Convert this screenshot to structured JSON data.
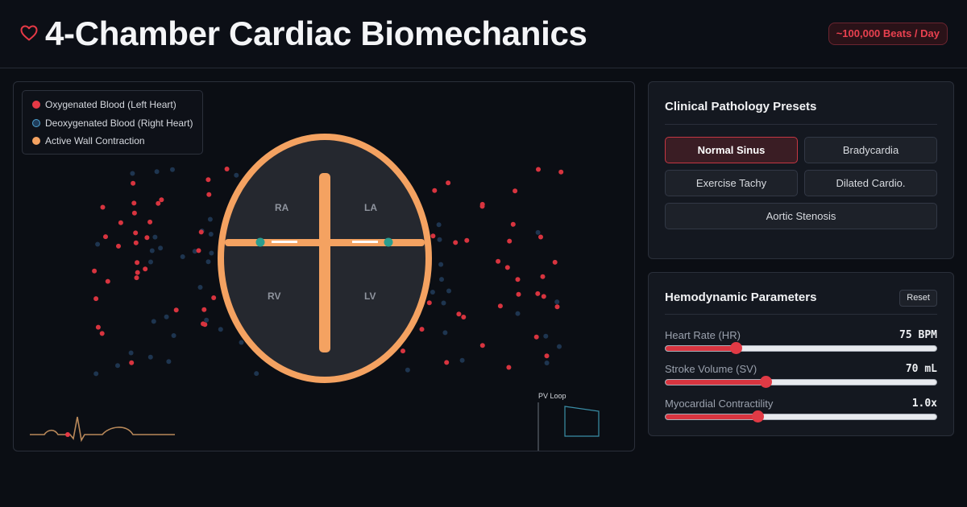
{
  "header": {
    "title": "4-Chamber Cardiac Biomechanics",
    "logo_icon": "heart-icon",
    "badge": "~100,000 Beats / Day",
    "accent": "#e63946"
  },
  "legend": {
    "items": [
      {
        "label": "Oxygenated Blood (Left Heart)",
        "color": "#e63946"
      },
      {
        "label": "Deoxygenated Blood (Right Heart)",
        "color": "#1f3c5a"
      },
      {
        "label": "Active Wall Contraction",
        "color": "#f4a261"
      }
    ]
  },
  "heart": {
    "chambers": {
      "ra": "RA",
      "la": "LA",
      "rv": "RV",
      "lv": "LV"
    },
    "wall_color": "#f4a261",
    "valve_color": "#2a9d8f"
  },
  "pv_loop": {
    "label": "PV Loop"
  },
  "presets": {
    "title": "Clinical Pathology Presets",
    "buttons": [
      {
        "label": "Normal Sinus",
        "active": true
      },
      {
        "label": "Bradycardia",
        "active": false
      },
      {
        "label": "Exercise Tachy",
        "active": false
      },
      {
        "label": "Dilated Cardio.",
        "active": false
      },
      {
        "label": "Aortic Stenosis",
        "active": false
      }
    ]
  },
  "params": {
    "title": "Hemodynamic Parameters",
    "reset_label": "Reset",
    "items": [
      {
        "label": "Heart Rate (HR)",
        "value": "75 BPM",
        "fraction": 0.26
      },
      {
        "label": "Stroke Volume (SV)",
        "value": "70 mL",
        "fraction": 0.37
      },
      {
        "label": "Myocardial Contractility",
        "value": "1.0x",
        "fraction": 0.34
      }
    ]
  }
}
